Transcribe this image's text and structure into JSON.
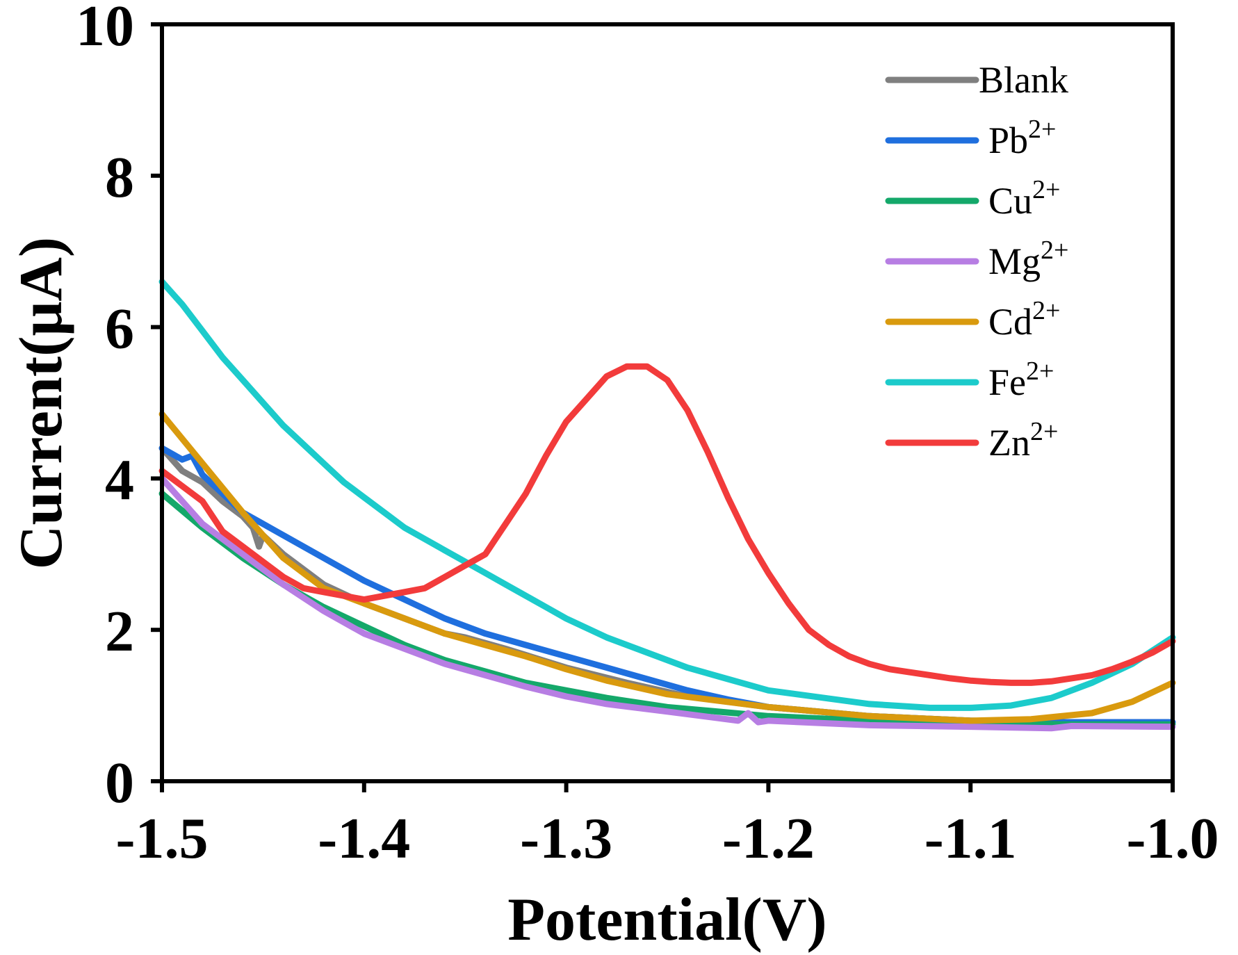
{
  "chart_data": {
    "type": "line",
    "title": "",
    "xlabel": "Potential(V)",
    "ylabel": "Current(μA)",
    "xlim": [
      -1.5,
      -1.0
    ],
    "ylim": [
      0,
      10
    ],
    "xticks": [
      -1.5,
      -1.4,
      -1.3,
      -1.2,
      -1.1,
      -1.0
    ],
    "xtick_labels": [
      "-1.5",
      "-1.4",
      "-1.3",
      "-1.2",
      "-1.1",
      "-1.0"
    ],
    "yticks": [
      0,
      2,
      4,
      6,
      8,
      10
    ],
    "ytick_labels": [
      "0",
      "2",
      "4",
      "6",
      "8",
      "10"
    ],
    "grid": false,
    "legend_position": "top-right",
    "series": [
      {
        "name": "Blank",
        "base": "Blank",
        "sup": "",
        "color": "#7f7f7f",
        "x": [
          -1.5,
          -1.49,
          -1.48,
          -1.47,
          -1.46,
          -1.455,
          -1.452,
          -1.45,
          -1.44,
          -1.43,
          -1.42,
          -1.4,
          -1.38,
          -1.36,
          -1.35,
          -1.33,
          -1.3,
          -1.27,
          -1.24,
          -1.2,
          -1.15,
          -1.1,
          -1.05,
          -1.0
        ],
        "y": [
          4.4,
          4.1,
          3.95,
          3.7,
          3.5,
          3.35,
          3.1,
          3.25,
          3.0,
          2.8,
          2.6,
          2.35,
          2.15,
          1.95,
          1.9,
          1.75,
          1.5,
          1.3,
          1.12,
          0.98,
          0.86,
          0.8,
          0.78,
          0.78
        ]
      },
      {
        "name": "Pb2+",
        "base": "Pb",
        "sup": "2+",
        "color": "#1f6fde",
        "x": [
          -1.5,
          -1.49,
          -1.485,
          -1.48,
          -1.47,
          -1.46,
          -1.45,
          -1.44,
          -1.42,
          -1.4,
          -1.38,
          -1.36,
          -1.34,
          -1.32,
          -1.3,
          -1.28,
          -1.26,
          -1.24,
          -1.22,
          -1.2,
          -1.15,
          -1.1,
          -1.05,
          -1.0
        ],
        "y": [
          4.4,
          4.25,
          4.3,
          4.05,
          3.8,
          3.55,
          3.4,
          3.25,
          2.95,
          2.65,
          2.4,
          2.15,
          1.95,
          1.8,
          1.65,
          1.5,
          1.35,
          1.2,
          1.08,
          0.98,
          0.86,
          0.8,
          0.78,
          0.78
        ]
      },
      {
        "name": "Cu2+",
        "base": "Cu",
        "sup": "2+",
        "color": "#14a86a",
        "x": [
          -1.5,
          -1.48,
          -1.46,
          -1.44,
          -1.42,
          -1.4,
          -1.38,
          -1.36,
          -1.34,
          -1.32,
          -1.3,
          -1.28,
          -1.25,
          -1.2,
          -1.15,
          -1.1,
          -1.05,
          -1.0
        ],
        "y": [
          3.8,
          3.35,
          2.95,
          2.6,
          2.3,
          2.05,
          1.8,
          1.6,
          1.45,
          1.3,
          1.2,
          1.1,
          0.98,
          0.86,
          0.8,
          0.77,
          0.75,
          0.75
        ]
      },
      {
        "name": "Mg2+",
        "base": "Mg",
        "sup": "2+",
        "color": "#b77ee3",
        "x": [
          -1.5,
          -1.48,
          -1.46,
          -1.44,
          -1.42,
          -1.4,
          -1.38,
          -1.36,
          -1.34,
          -1.32,
          -1.3,
          -1.28,
          -1.25,
          -1.215,
          -1.21,
          -1.205,
          -1.2,
          -1.15,
          -1.1,
          -1.06,
          -1.05,
          -1.0
        ],
        "y": [
          4.0,
          3.4,
          3.0,
          2.6,
          2.25,
          1.95,
          1.75,
          1.55,
          1.4,
          1.25,
          1.12,
          1.02,
          0.92,
          0.8,
          0.9,
          0.78,
          0.8,
          0.74,
          0.72,
          0.7,
          0.73,
          0.72
        ]
      },
      {
        "name": "Cd2+",
        "base": "Cd",
        "sup": "2+",
        "color": "#d99a0e",
        "x": [
          -1.5,
          -1.48,
          -1.46,
          -1.44,
          -1.42,
          -1.4,
          -1.38,
          -1.36,
          -1.34,
          -1.32,
          -1.3,
          -1.28,
          -1.25,
          -1.2,
          -1.15,
          -1.1,
          -1.07,
          -1.04,
          -1.02,
          -1.0
        ],
        "y": [
          4.85,
          4.2,
          3.55,
          2.95,
          2.55,
          2.35,
          2.15,
          1.95,
          1.8,
          1.65,
          1.48,
          1.33,
          1.15,
          0.98,
          0.86,
          0.8,
          0.82,
          0.9,
          1.05,
          1.3
        ]
      },
      {
        "name": "Fe2+",
        "base": "Fe",
        "sup": "2+",
        "color": "#1ccbcb",
        "x": [
          -1.5,
          -1.49,
          -1.48,
          -1.47,
          -1.46,
          -1.45,
          -1.44,
          -1.43,
          -1.42,
          -1.41,
          -1.4,
          -1.39,
          -1.38,
          -1.37,
          -1.36,
          -1.35,
          -1.34,
          -1.33,
          -1.32,
          -1.31,
          -1.3,
          -1.28,
          -1.26,
          -1.24,
          -1.22,
          -1.2,
          -1.15,
          -1.12,
          -1.1,
          -1.08,
          -1.06,
          -1.04,
          -1.02,
          -1.0
        ],
        "y": [
          6.6,
          6.3,
          5.95,
          5.6,
          5.3,
          5.0,
          4.7,
          4.45,
          4.2,
          3.95,
          3.75,
          3.55,
          3.35,
          3.2,
          3.05,
          2.9,
          2.75,
          2.6,
          2.45,
          2.3,
          2.15,
          1.9,
          1.7,
          1.5,
          1.35,
          1.2,
          1.02,
          0.97,
          0.97,
          1.0,
          1.1,
          1.3,
          1.55,
          1.9
        ]
      },
      {
        "name": "Zn2+",
        "base": "Zn",
        "sup": "2+",
        "color": "#f23b3b",
        "x": [
          -1.5,
          -1.49,
          -1.48,
          -1.47,
          -1.46,
          -1.45,
          -1.44,
          -1.43,
          -1.42,
          -1.41,
          -1.4,
          -1.39,
          -1.38,
          -1.37,
          -1.36,
          -1.35,
          -1.34,
          -1.335,
          -1.33,
          -1.32,
          -1.31,
          -1.3,
          -1.29,
          -1.28,
          -1.27,
          -1.26,
          -1.25,
          -1.24,
          -1.23,
          -1.22,
          -1.21,
          -1.2,
          -1.19,
          -1.18,
          -1.17,
          -1.16,
          -1.15,
          -1.14,
          -1.13,
          -1.12,
          -1.11,
          -1.1,
          -1.09,
          -1.08,
          -1.07,
          -1.06,
          -1.05,
          -1.04,
          -1.03,
          -1.02,
          -1.01,
          -1.0
        ],
        "y": [
          4.1,
          3.9,
          3.7,
          3.3,
          3.1,
          2.9,
          2.7,
          2.55,
          2.5,
          2.45,
          2.4,
          2.45,
          2.5,
          2.55,
          2.7,
          2.85,
          3.0,
          3.2,
          3.4,
          3.8,
          4.3,
          4.75,
          5.05,
          5.35,
          5.48,
          5.48,
          5.3,
          4.9,
          4.35,
          3.75,
          3.2,
          2.75,
          2.35,
          2.0,
          1.8,
          1.65,
          1.55,
          1.48,
          1.44,
          1.4,
          1.36,
          1.33,
          1.31,
          1.3,
          1.3,
          1.32,
          1.36,
          1.4,
          1.48,
          1.58,
          1.7,
          1.85
        ]
      }
    ]
  }
}
